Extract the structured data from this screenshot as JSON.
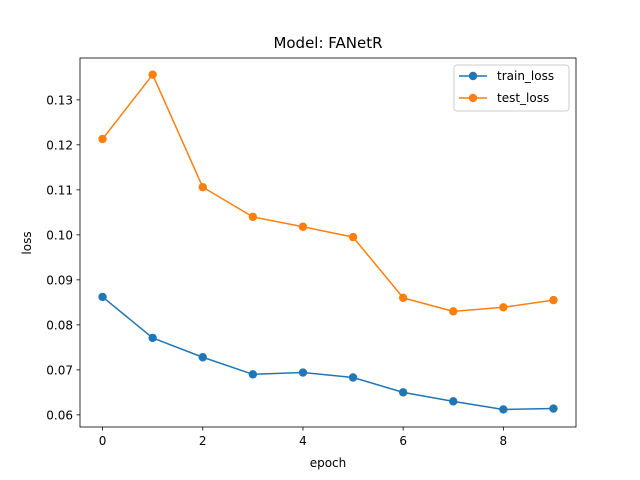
{
  "chart_data": {
    "type": "line",
    "title": "Model: FANetR",
    "xlabel": "epoch",
    "ylabel": "loss",
    "x": [
      0,
      1,
      2,
      3,
      4,
      5,
      6,
      7,
      8,
      9
    ],
    "xlim": [
      -0.45,
      9.45
    ],
    "ylim": [
      0.0573,
      0.1393
    ],
    "xticks": [
      0,
      2,
      4,
      6,
      8
    ],
    "yticks": [
      0.06,
      0.07,
      0.08,
      0.09,
      0.1,
      0.11,
      0.12,
      0.13
    ],
    "xtick_labels": [
      "0",
      "2",
      "4",
      "6",
      "8"
    ],
    "ytick_labels": [
      "0.06",
      "0.07",
      "0.08",
      "0.09",
      "0.10",
      "0.11",
      "0.12",
      "0.13"
    ],
    "grid": false,
    "legend_position": "top-right",
    "series": [
      {
        "name": "train_loss",
        "color": "#1f77b4",
        "marker": "circle",
        "values": [
          0.0862,
          0.0771,
          0.0728,
          0.069,
          0.0694,
          0.0683,
          0.065,
          0.063,
          0.0612,
          0.0614
        ]
      },
      {
        "name": "test_loss",
        "color": "#ff7f0e",
        "marker": "circle",
        "values": [
          0.1213,
          0.1356,
          0.1106,
          0.104,
          0.1018,
          0.0995,
          0.086,
          0.083,
          0.0839,
          0.0855
        ]
      }
    ]
  }
}
